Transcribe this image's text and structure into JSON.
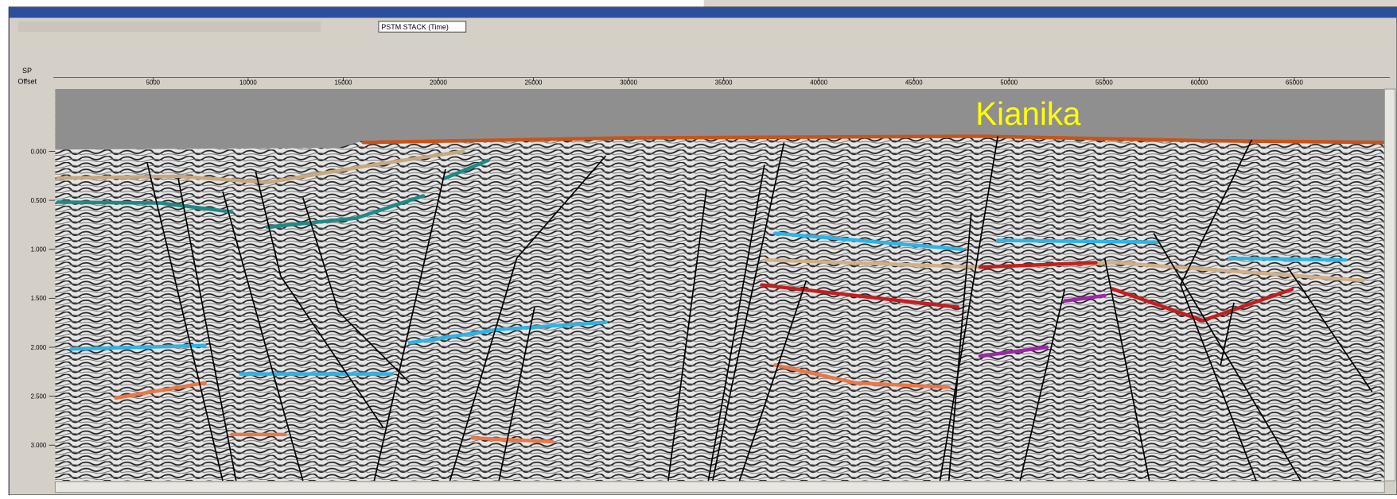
{
  "window": {
    "toolbar_dropdown": "PSTM STACK (Time)",
    "annotation": "Kianika",
    "axes": {
      "sp_label": "SP",
      "offset_label": "Offset",
      "offset_ticks": [
        5000,
        10000,
        15000,
        20000,
        25000,
        30000,
        35000,
        40000,
        45000,
        50000,
        55000,
        60000,
        65000
      ],
      "time_ticks": [
        {
          "value": 0,
          "label": "0.000"
        },
        {
          "value": 0.5,
          "label": "0.500"
        },
        {
          "value": 1,
          "label": "1.000"
        },
        {
          "value": 1.5,
          "label": "1.500"
        },
        {
          "value": 2,
          "label": "2.000"
        },
        {
          "value": 2.5,
          "label": "2.500"
        },
        {
          "value": 3,
          "label": "3.000"
        }
      ]
    }
  }
}
